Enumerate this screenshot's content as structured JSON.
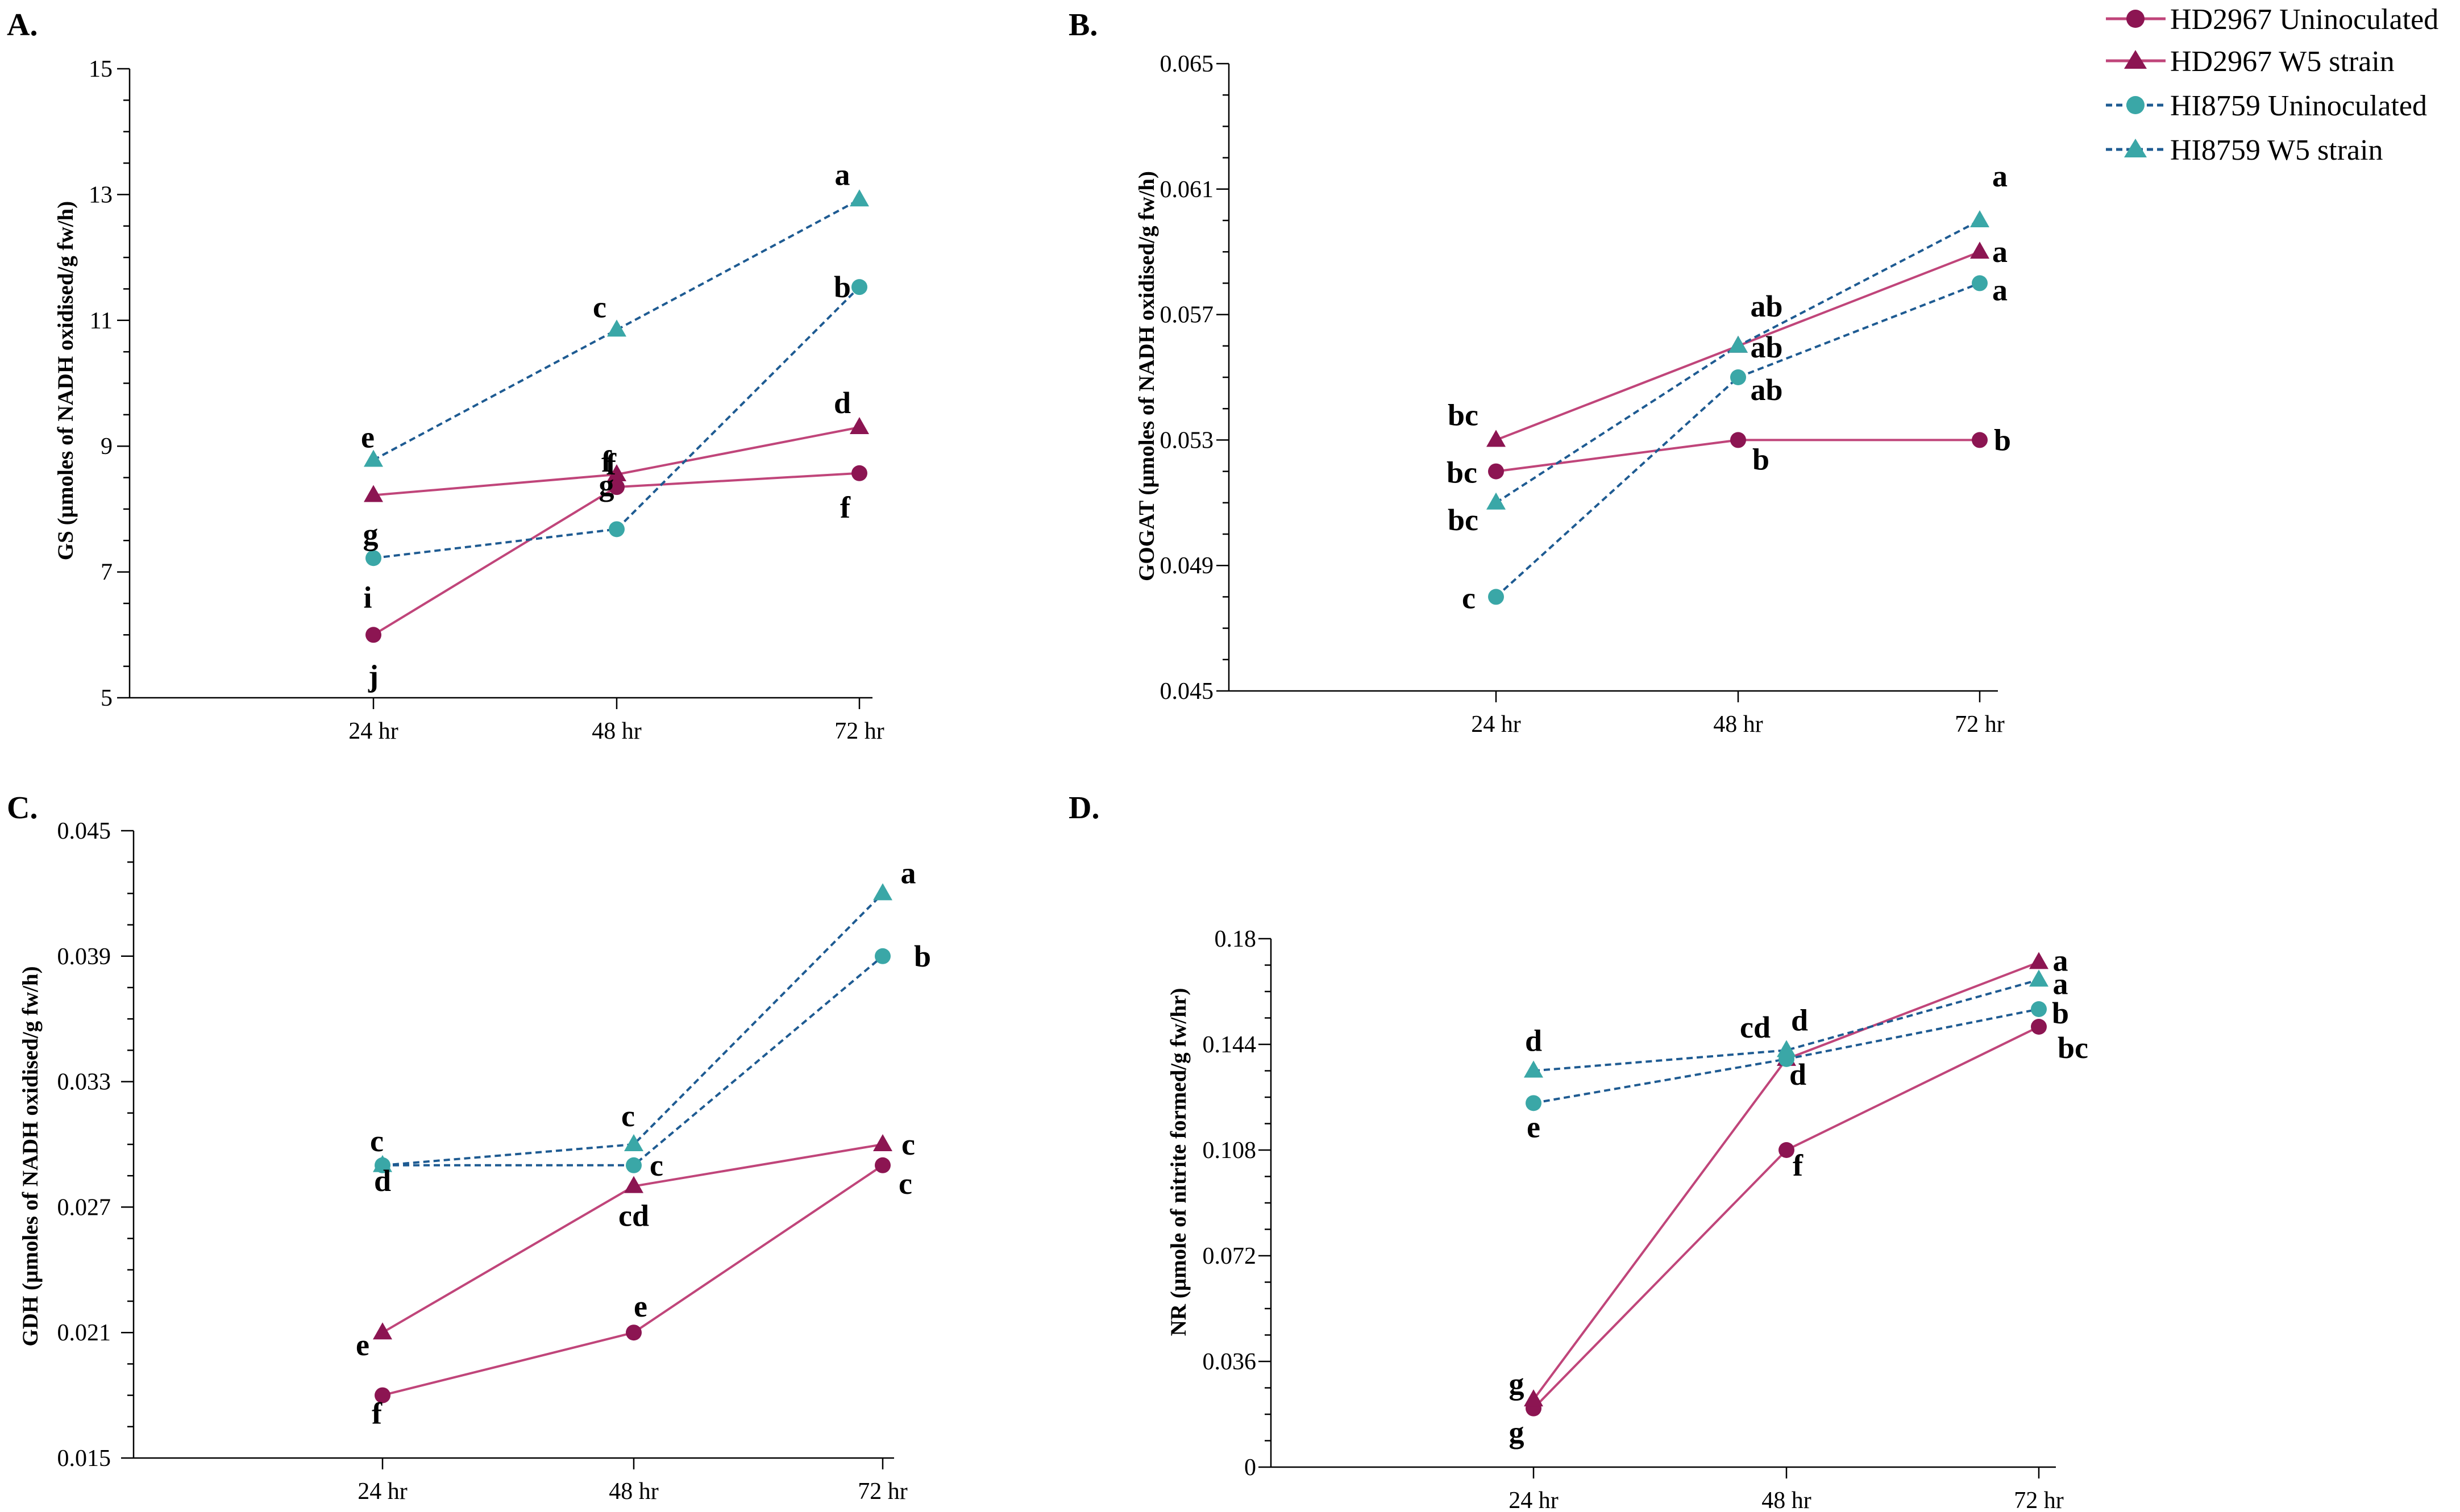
{
  "figure": {
    "legend": [
      {
        "label": "HD2967 Uninoculated",
        "color": "#8c1552",
        "marker": "circle",
        "dash": "solid"
      },
      {
        "label": "HD2967 W5 strain",
        "color": "#8c1552",
        "marker": "triangle",
        "dash": "solid"
      },
      {
        "label": "HI8759 Uninoculated",
        "color": "#3aa7a7",
        "marker": "circle",
        "dash": "dotted"
      },
      {
        "label": "HI8759  W5 strain",
        "color": "#3aa7a7",
        "marker": "triangle",
        "dash": "dotted"
      }
    ],
    "colors": {
      "hd_line": "#c0457a",
      "hd_marker": "#8c1552",
      "hi_line": "#1e5b92",
      "hi_marker": "#3aa7a7"
    }
  },
  "chart_data": [
    {
      "type": "line",
      "title": "A.",
      "ylabel": "GS (µmoles of NADH oxidised/g fw/h)",
      "categories": [
        "24 hr",
        "48 hr",
        "72 hr"
      ],
      "ylim": [
        5,
        15
      ],
      "yticks": [
        5,
        7,
        9,
        11,
        13,
        15
      ],
      "ytick_labels": [
        "5",
        "7",
        "9",
        "11",
        "13",
        "15"
      ],
      "series": [
        {
          "name": "HD2967 Uninoculated",
          "values": [
            6.0,
            8.35,
            8.57
          ],
          "letters": [
            "j",
            "f",
            "f"
          ]
        },
        {
          "name": "HD2967 W5 strain",
          "values": [
            8.22,
            8.55,
            9.3
          ],
          "letters": [
            "i",
            "f",
            "d"
          ]
        },
        {
          "name": "HI8759 Uninoculated",
          "values": [
            7.22,
            7.68,
            11.53
          ],
          "letters": [
            "g",
            "g",
            "b"
          ]
        },
        {
          "name": "HI8759  W5 strain",
          "values": [
            8.78,
            10.85,
            12.92
          ],
          "letters": [
            "e",
            "c",
            "a"
          ]
        }
      ]
    },
    {
      "type": "line",
      "title": "B.",
      "ylabel": "GOGAT (µmoles of NADH oxidised/g fw/h)",
      "categories": [
        "24 hr",
        "48 hr",
        "72 hr"
      ],
      "ylim": [
        0.045,
        0.065
      ],
      "yticks": [
        0.045,
        0.049,
        0.053,
        0.057,
        0.061,
        0.065
      ],
      "ytick_labels": [
        "0.045",
        "0.049",
        "0.053",
        "0.057",
        "0.061",
        "0.065"
      ],
      "series": [
        {
          "name": "HD2967 Uninoculated",
          "values": [
            0.052,
            0.053,
            0.053
          ],
          "letters": [
            "bc",
            "b",
            "b"
          ]
        },
        {
          "name": "HD2967 W5 strain",
          "values": [
            0.053,
            0.056,
            0.059
          ],
          "letters": [
            "bc",
            "ab",
            "a"
          ]
        },
        {
          "name": "HI8759 Uninoculated",
          "values": [
            0.048,
            0.055,
            0.058
          ],
          "letters": [
            "c",
            "ab",
            "a"
          ]
        },
        {
          "name": "HI8759  W5 strain",
          "values": [
            0.051,
            0.056,
            0.06
          ],
          "letters": [
            "bc",
            "ab",
            "a"
          ]
        }
      ]
    },
    {
      "type": "line",
      "title": "C.",
      "ylabel": "GDH (µmoles of NADH oxidised/g fw/h)",
      "categories": [
        "24 hr",
        "48 hr",
        "72 hr"
      ],
      "ylim": [
        0.015,
        0.045
      ],
      "yticks": [
        0.015,
        0.021,
        0.027,
        0.033,
        0.039,
        0.045
      ],
      "ytick_labels": [
        "0.015",
        "0.021",
        "0.027",
        "0.033",
        "0.039",
        "0.045"
      ],
      "series": [
        {
          "name": "HD2967 Uninoculated",
          "values": [
            0.018,
            0.021,
            0.029
          ],
          "letters": [
            "f",
            "e",
            "c"
          ]
        },
        {
          "name": "HD2967 W5 strain",
          "values": [
            0.021,
            0.028,
            0.03
          ],
          "letters": [
            "e",
            "cd",
            "c"
          ]
        },
        {
          "name": "HI8759 Uninoculated",
          "values": [
            0.029,
            0.029,
            0.039
          ],
          "letters": [
            "d",
            "c",
            "b"
          ]
        },
        {
          "name": "HI8759  W5 strain",
          "values": [
            0.029,
            0.03,
            0.042
          ],
          "letters": [
            "c",
            "c",
            "a"
          ]
        }
      ]
    },
    {
      "type": "line",
      "title": "D.",
      "ylabel": "NR (µmole of nitrite formed/g fw/hr)",
      "categories": [
        "24 hr",
        "48 hr",
        "72 hr"
      ],
      "ylim": [
        0,
        0.18
      ],
      "yticks": [
        0,
        0.036,
        0.072,
        0.108,
        0.144,
        0.18
      ],
      "ytick_labels": [
        "0",
        "0.036",
        "0.072",
        "0.108",
        "0.144",
        "0.18"
      ],
      "series": [
        {
          "name": "HD2967 Uninoculated",
          "values": [
            0.02,
            0.108,
            0.15
          ],
          "letters": [
            "g",
            "f",
            "bc"
          ]
        },
        {
          "name": "HD2967 W5 strain",
          "values": [
            0.023,
            0.139,
            0.172
          ],
          "letters": [
            "g",
            "d",
            "a"
          ]
        },
        {
          "name": "HI8759 Uninoculated",
          "values": [
            0.124,
            0.139,
            0.156
          ],
          "letters": [
            "e",
            "cd",
            "b"
          ]
        },
        {
          "name": "HI8759  W5 strain",
          "values": [
            0.135,
            0.142,
            0.166
          ],
          "letters": [
            "d",
            "d",
            "a"
          ]
        }
      ]
    }
  ]
}
